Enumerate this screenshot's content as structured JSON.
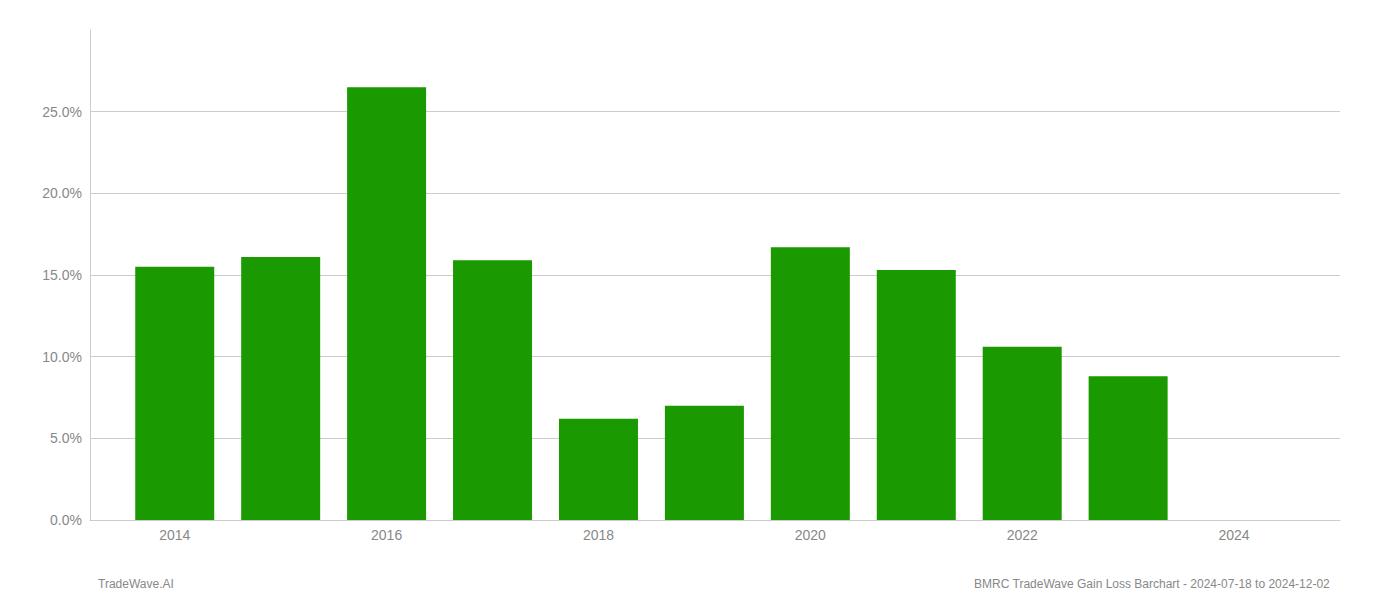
{
  "chart_data": {
    "type": "bar",
    "x": [
      2014,
      2015,
      2016,
      2017,
      2018,
      2019,
      2020,
      2021,
      2022,
      2023
    ],
    "values": [
      0.155,
      0.161,
      0.265,
      0.159,
      0.062,
      0.07,
      0.167,
      0.153,
      0.106,
      0.088
    ],
    "color": "#1a9a00",
    "xlim": [
      2013.2,
      2025.0
    ],
    "xticks": [
      2014,
      2016,
      2018,
      2020,
      2022,
      2024
    ],
    "ylim": [
      0,
      0.3
    ],
    "yticks": [
      {
        "value": 0.0,
        "label": "0.0%"
      },
      {
        "value": 0.05,
        "label": "5.0%"
      },
      {
        "value": 0.1,
        "label": "10.0%"
      },
      {
        "value": 0.15,
        "label": "15.0%"
      },
      {
        "value": 0.2,
        "label": "20.0%"
      },
      {
        "value": 0.25,
        "label": "25.0%"
      }
    ],
    "grid": true,
    "annotations": [
      "TradeWave.AI",
      "BMRC TradeWave Gain Loss Barchart - 2024-07-18 to 2024-12-02"
    ]
  }
}
